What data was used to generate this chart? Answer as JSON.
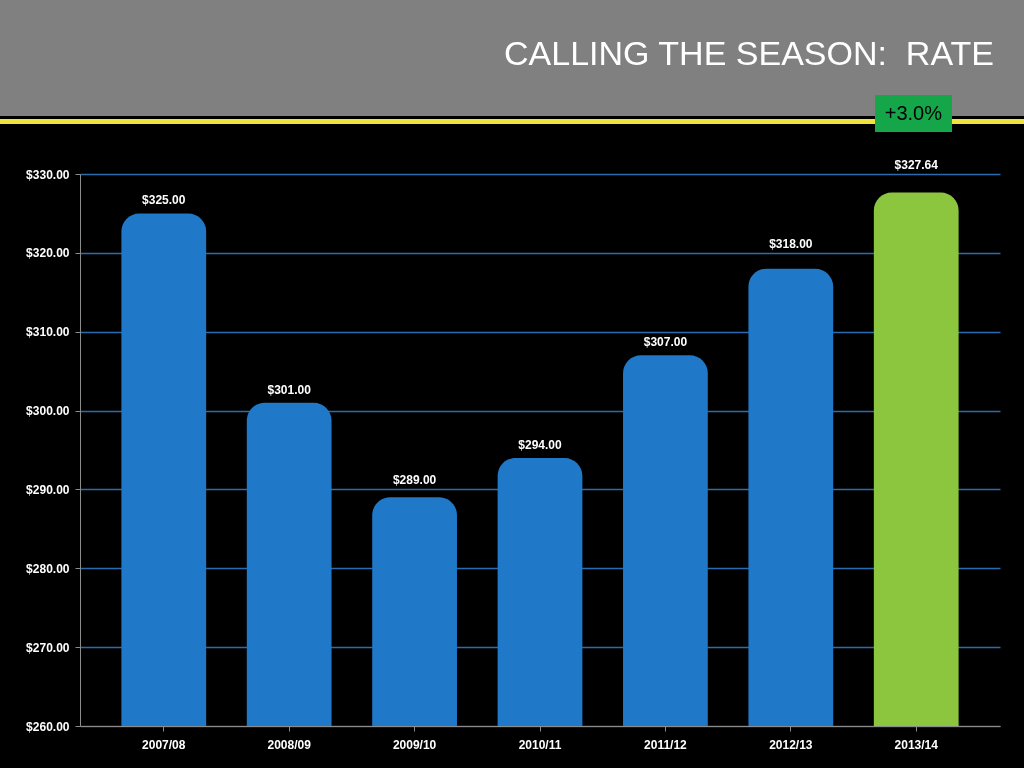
{
  "chart_data": {
    "type": "bar",
    "title": "CALLING THE SEASON:  RATE",
    "annotations": [
      "+3.0%"
    ],
    "categories": [
      "2007/08",
      "2008/09",
      "2009/10",
      "2010/11",
      "2011/12",
      "2012/13",
      "2013/14"
    ],
    "values": [
      325,
      301,
      289,
      294,
      307,
      318,
      327.64
    ],
    "value_labels": [
      "$325.00",
      "$301.00",
      "$289.00",
      "$294.00",
      "$307.00",
      "$318.00",
      "$327.64"
    ],
    "colors": [
      "#1f78c8",
      "#1f78c8",
      "#1f78c8",
      "#1f78c8",
      "#1f78c8",
      "#1f78c8",
      "#8cc63f"
    ],
    "ylim": [
      260,
      330
    ],
    "yticks": [
      {
        "value": 260,
        "label": "$260.00"
      },
      {
        "value": 270,
        "label": "$270.00"
      },
      {
        "value": 280,
        "label": "$280.00"
      },
      {
        "value": 290,
        "label": "$290.00"
      },
      {
        "value": 300,
        "label": "$300.00"
      },
      {
        "value": 310,
        "label": "$310.00"
      },
      {
        "value": 320,
        "label": "$320.00"
      },
      {
        "value": 330,
        "label": "$330.00"
      }
    ],
    "grid": "y"
  }
}
